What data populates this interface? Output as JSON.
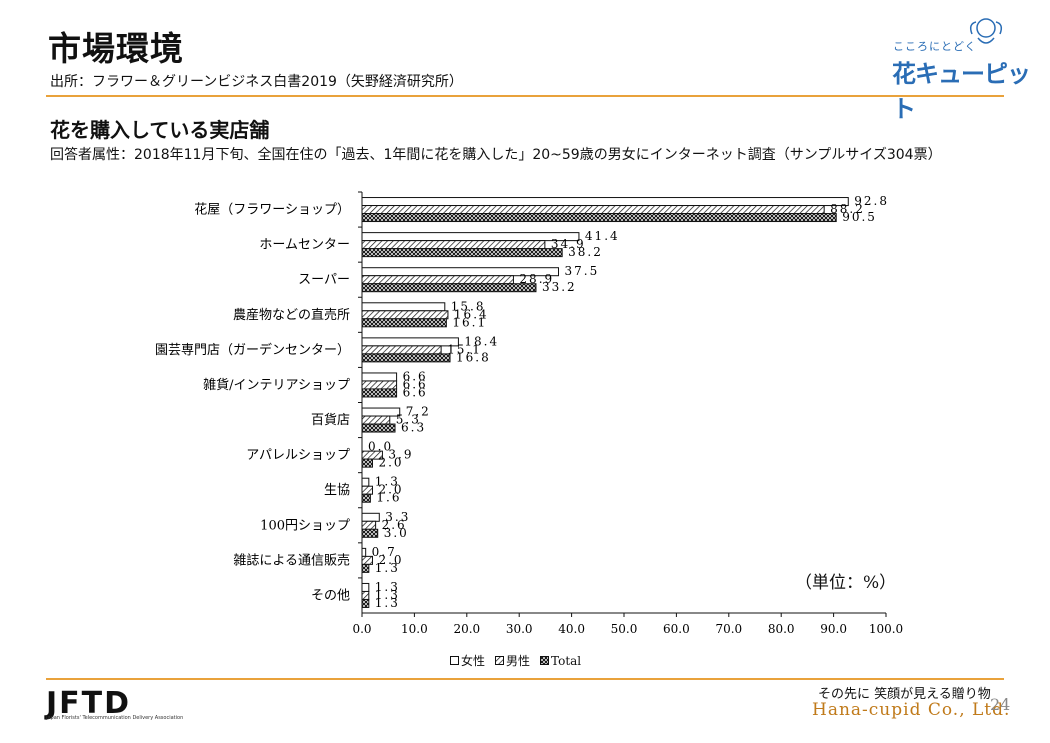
{
  "header": {
    "title": "市場環境",
    "source": "出所：フラワー＆グリーンビジネス白書2019（矢野経済研究所）"
  },
  "section": {
    "subtitle": "花を購入している実店舗",
    "description": "回答者属性：2018年11月下旬、全国在住の「過去、1年間に花を購入した」20~59歳の男女にインターネット調査（サンプルサイズ304票）"
  },
  "logo": {
    "small_text": "こころにとどく",
    "big_text": "花キューピット"
  },
  "footer": {
    "org_logo": "JFTD",
    "org_name": "Japan Florists' Telecommunication Delivery Association",
    "tagline": "その先に 笑顔が見える贈り物",
    "brand": "Hana-cupid Co., Ltd.",
    "page_number": "24"
  },
  "colors": {
    "accent_rule": "#e9a23b",
    "brand_blue": "#2a6db5",
    "brand_gold": "#c07a1a"
  },
  "chart_data": {
    "type": "bar",
    "orientation": "horizontal",
    "unit_label": "（単位：%）",
    "categories": [
      "花屋（フラワーショップ）",
      "ホームセンター",
      "スーパー",
      "農産物などの直売所",
      "園芸専門店（ガーデンセンター）",
      "雑貨/インテリアショップ",
      "百貨店",
      "アパレルショップ",
      "生協",
      "100円ショップ",
      "雑誌による通信販売",
      "その他"
    ],
    "series": [
      {
        "name": "女性",
        "pattern": "white",
        "values": [
          92.8,
          41.4,
          37.5,
          15.8,
          18.4,
          6.6,
          7.2,
          0.0,
          1.3,
          3.3,
          0.7,
          1.3
        ]
      },
      {
        "name": "男性",
        "pattern": "diagonal",
        "values": [
          88.2,
          34.9,
          28.9,
          16.4,
          15.1,
          6.6,
          5.3,
          3.9,
          2.0,
          2.6,
          2.0,
          1.3
        ]
      },
      {
        "name": "Total",
        "pattern": "crosshatch",
        "values": [
          90.5,
          38.2,
          33.2,
          16.1,
          16.8,
          6.6,
          6.3,
          2.0,
          1.6,
          3.0,
          1.3,
          1.3
        ]
      }
    ],
    "value_labels": [
      [
        "92.8",
        "41.4",
        "37.5",
        "15.8",
        "18.4",
        "6.6",
        "7.2",
        "0.0",
        "1.3",
        "3.3",
        "0.7",
        "1.3"
      ],
      [
        "88.2",
        "34.9",
        "28.9",
        "16.4",
        "15.1",
        "6.6",
        "5.3",
        "3.9",
        "2.0",
        "2.6",
        "2.0",
        "1.3"
      ],
      [
        "90.5",
        "38.2",
        "33.2",
        "16.1",
        "16.8",
        "6.6",
        "6.3",
        "2.0",
        "1.6",
        "3.0",
        "1.3",
        "1.3"
      ]
    ],
    "xlim": [
      0,
      100
    ],
    "xticks": [
      "0.0",
      "10.0",
      "20.0",
      "30.0",
      "40.0",
      "50.0",
      "60.0",
      "70.0",
      "80.0",
      "90.0",
      "100.0"
    ],
    "grid": false,
    "legend_position": "bottom"
  }
}
